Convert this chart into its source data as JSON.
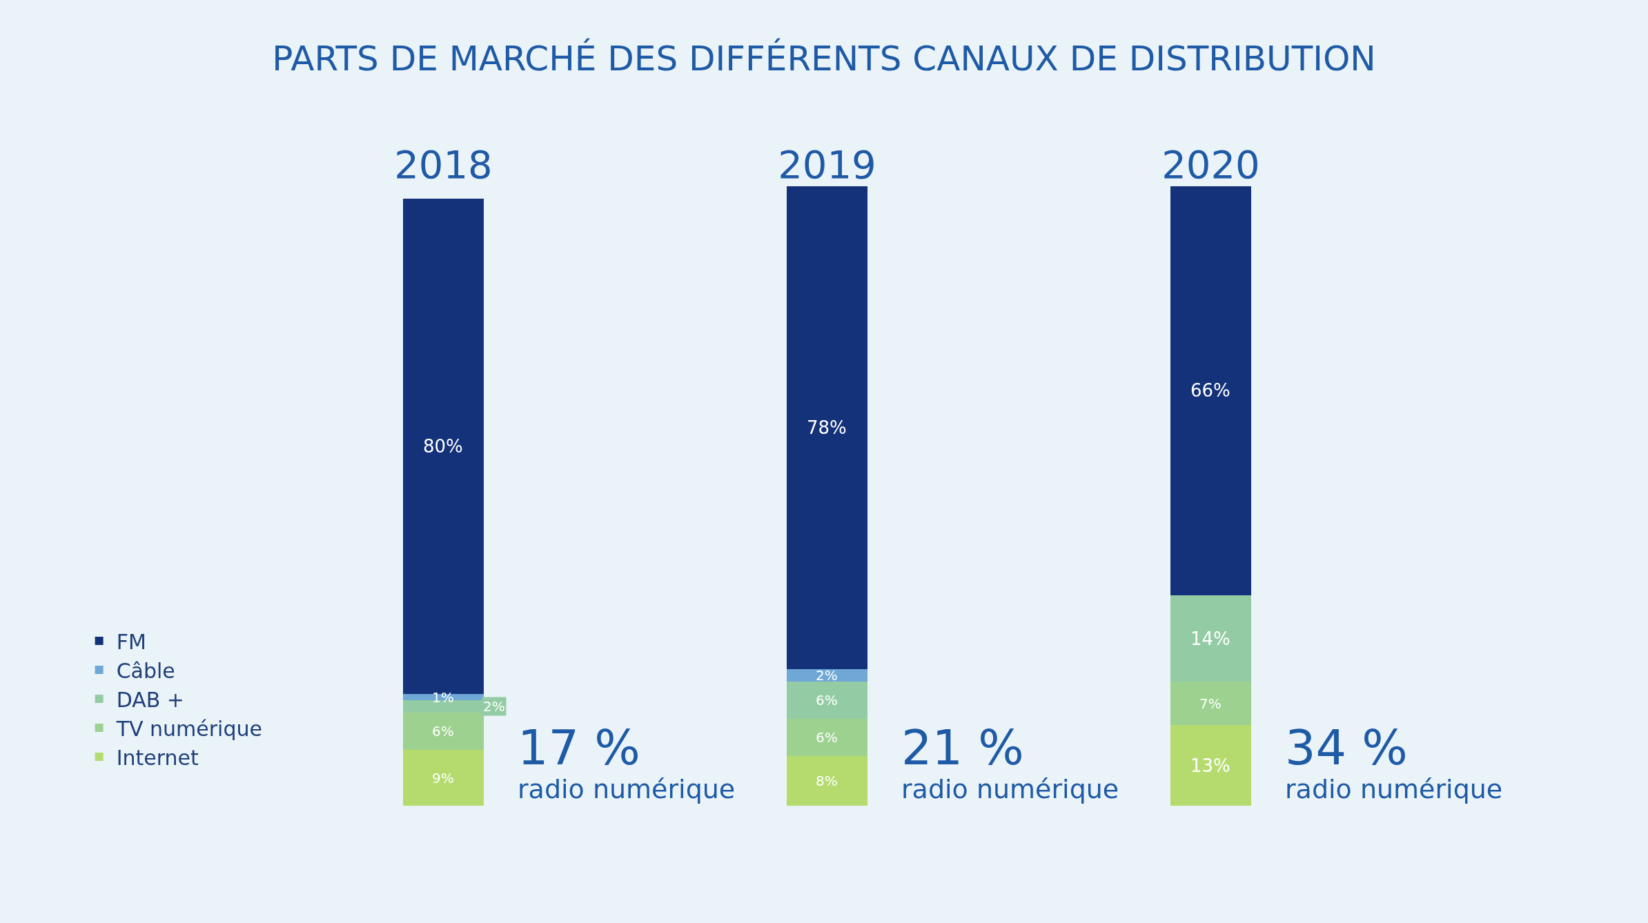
{
  "chart_data": {
    "type": "bar",
    "title": "PARTS DE MARCHÉ DES DIFFÉRENTS CANAUX DE DISTRIBUTION",
    "categories": [
      "2018",
      "2019",
      "2020"
    ],
    "stacked": true,
    "ylim": [
      0,
      100
    ],
    "tick_labels": "x",
    "legend": "left",
    "grid": false,
    "series": [
      {
        "name": "Internet",
        "color": "#b5db6e",
        "values": [
          9,
          8,
          13
        ],
        "value_labels": [
          "9%",
          "8%",
          "13%"
        ]
      },
      {
        "name": "TV numérique",
        "color": "#9dd18f",
        "values": [
          6,
          6,
          7
        ],
        "value_labels": [
          "6%",
          "6%",
          "7%"
        ]
      },
      {
        "name": "DAB +",
        "color": "#93cca4",
        "values": [
          2,
          6,
          14
        ],
        "value_labels": [
          "2%",
          "6%",
          "14%"
        ]
      },
      {
        "name": "Câble",
        "color": "#6fa8d6",
        "values": [
          1,
          2,
          null
        ],
        "value_labels": [
          "1%",
          "2%",
          null
        ]
      },
      {
        "name": "FM",
        "color": "#14327a",
        "values": [
          80,
          78,
          66
        ],
        "value_labels": [
          "80%",
          "78%",
          "66%"
        ]
      }
    ],
    "annotations": [
      "17 %\nradio numérique",
      "21 %\nradio numérique",
      "34 %\nradio numérique"
    ]
  }
}
